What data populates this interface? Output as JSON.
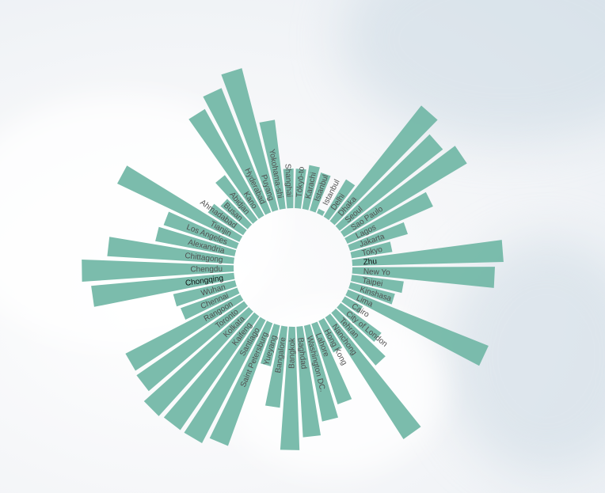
{
  "chart_data": {
    "type": "bar",
    "layout": "radial",
    "start_angle_deg": 12,
    "categories": [
      "Karachi",
      "Istanbul",
      "Istanbul",
      "Delhi",
      "Dhaka",
      "Seoul",
      "Sao Paulo",
      "Lagos",
      "Jakarta",
      "Tokyo",
      "Zhu",
      "New Yo",
      "Taipei",
      "Kinshasa",
      "Lima",
      "Cairo",
      "City of London",
      "Tehran",
      "Nanchong",
      "Hong Kong",
      "Lahore",
      "Washington DC.",
      "Baghdad",
      "Bangkok",
      "Bangalore",
      "Yueyang",
      "Saint Petersburg",
      "Santiago",
      "Kaifeng",
      "Kolkata",
      "Toronto",
      "Rangoon",
      "Chennai",
      "Wuhan",
      "Chongqing",
      "Chengdu",
      "Chittagong",
      "Alexandria",
      "Los Angeles",
      "Tianjin",
      "Ahmadabad",
      "Busan",
      "Abidjan",
      "Kano",
      "Hyderabad",
      "Puyang",
      "Yokohama-shi",
      "Shanghai",
      "Tōkyō-to"
    ],
    "values": [
      56,
      50,
      6,
      55,
      186,
      166,
      181,
      118,
      76,
      52,
      191,
      180,
      66,
      58,
      191,
      26,
      64,
      87,
      183,
      44,
      107,
      123,
      140,
      156,
      103,
      53,
      165,
      175,
      175,
      178,
      165,
      163,
      76,
      80,
      181,
      192,
      160,
      102,
      97,
      171,
      53,
      45,
      70,
      154,
      169,
      185,
      113,
      50,
      50
    ],
    "highlight": [
      "Zhu",
      "Chongqing"
    ],
    "bar_color": "#74b8a8"
  }
}
